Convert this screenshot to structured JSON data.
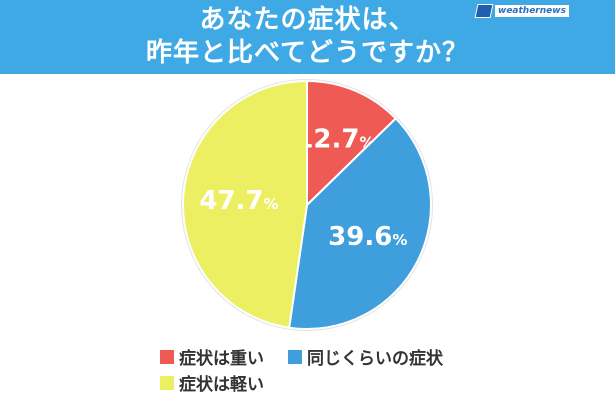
{
  "title_lines": [
    "あなたの症状は、",
    "昨年と比べてどうですか？"
  ],
  "logo_text": "weathernews",
  "colors": {
    "header": "#3fa9e6",
    "severe": "#ef5b54",
    "same": "#3e9fdc",
    "mild": "#edef62"
  },
  "chart_data": {
    "type": "pie",
    "title": "あなたの症状は、昨年と比べてどうですか？",
    "unit": "%",
    "slices": [
      {
        "label": "症状は重い",
        "value": 12.7,
        "color": "#ef5b54"
      },
      {
        "label": "同じくらいの症状",
        "value": 39.6,
        "color": "#3e9fdc"
      },
      {
        "label": "症状は軽い",
        "value": 47.7,
        "color": "#edef62"
      }
    ],
    "legend_position": "bottom"
  }
}
